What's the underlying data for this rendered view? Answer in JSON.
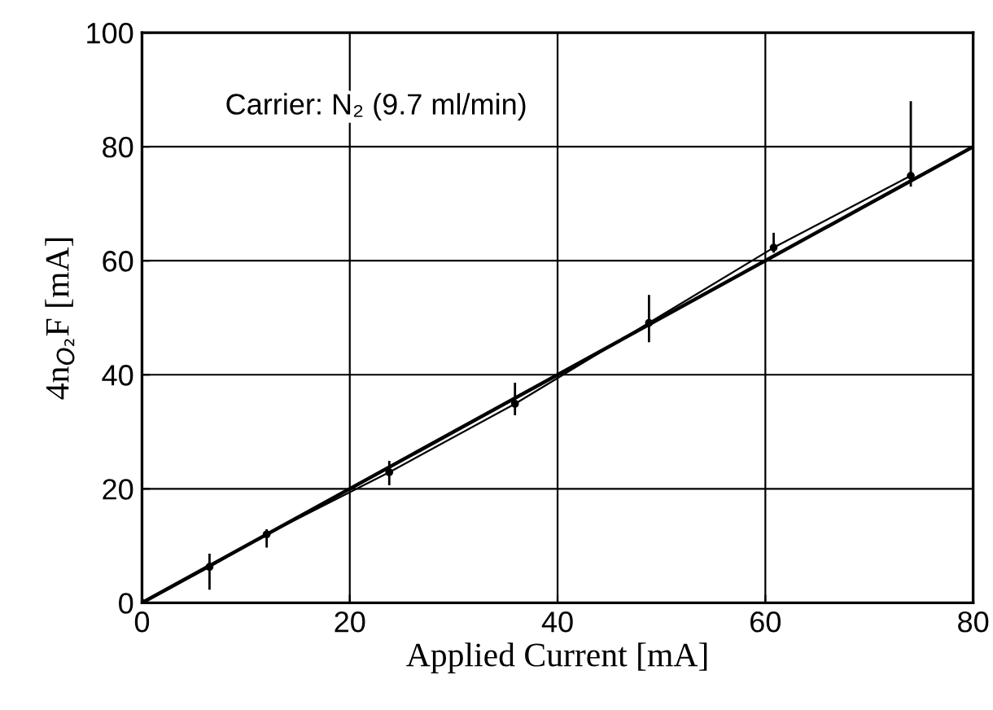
{
  "chart_data": {
    "type": "line",
    "xlabel": "Applied Current [mA]",
    "ylabel": "4n$_{O₂}$F [mA]",
    "annotations": [
      "Carrier: N₂ (9.7 ml/min)"
    ],
    "xlim": [
      0,
      80
    ],
    "ylim": [
      0,
      100
    ],
    "xticks": [
      0,
      20,
      40,
      60,
      80
    ],
    "yticks": [
      0,
      20,
      40,
      60,
      80,
      100
    ],
    "grid": true,
    "series": [
      {
        "color": "#000000",
        "x": [
          0,
          6.5,
          12,
          23.8,
          35.9,
          48.8,
          60.8,
          74
        ],
        "values": [
          0,
          6.3,
          12,
          22.9,
          34.9,
          49.1,
          62.3,
          74.9
        ],
        "errors": [
          null,
          [
            2.3,
            8.6
          ],
          [
            9.7,
            12.9
          ],
          [
            20.6,
            24.9
          ],
          [
            32.9,
            38.6
          ],
          [
            45.7,
            54
          ],
          [
            61.4,
            64.9
          ],
          [
            73,
            88
          ]
        ],
        "marker": "circle"
      },
      {
        "color": "#000000",
        "x": [
          0,
          80
        ],
        "values": [
          0,
          80
        ]
      }
    ]
  }
}
